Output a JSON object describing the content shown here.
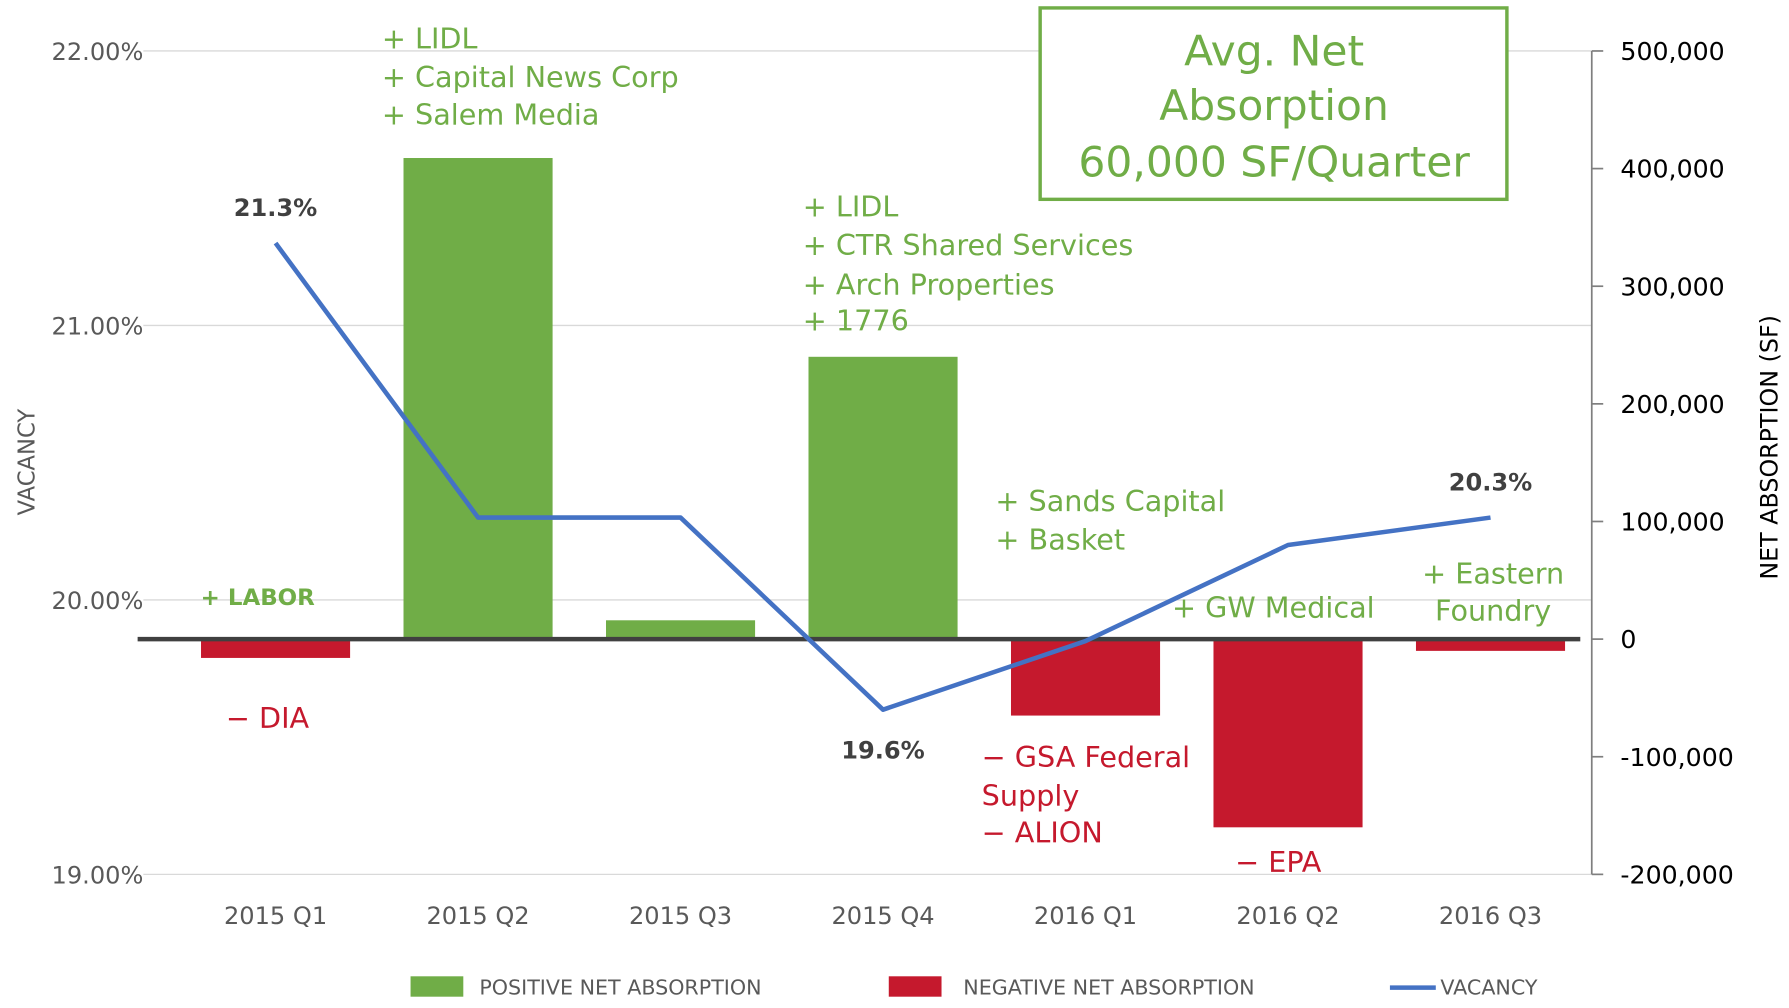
{
  "chart_data": {
    "type": "bar_line",
    "categories": [
      "2015 Q1",
      "2015 Q2",
      "2015 Q3",
      "2015 Q4",
      "2016 Q1",
      "2016 Q2",
      "2016 Q3"
    ],
    "series": [
      {
        "name": "POSITIVE NET ABSORPTION",
        "color": "#70ad47",
        "axis": "y2",
        "type": "bar",
        "values": [
          null,
          409000,
          16000,
          240000,
          null,
          null,
          null
        ]
      },
      {
        "name": "NEGATIVE NET ABSORPTION",
        "color": "#c5192d",
        "axis": "y2",
        "type": "bar",
        "values": [
          -16000,
          null,
          null,
          null,
          -65000,
          -160000,
          -10000
        ]
      },
      {
        "name": "VACANCY",
        "color": "#4472c4",
        "type": "line",
        "values": [
          21.3,
          20.3,
          20.3,
          19.6,
          19.85,
          20.2,
          20.3
        ],
        "value_labels": [
          "21.3%",
          null,
          null,
          "19.6%",
          null,
          null,
          "20.3%"
        ]
      }
    ],
    "ylabel": "VACANCY",
    "y2label": "NET ABSORPTION (SF)",
    "ylim": [
      19,
      22
    ],
    "yticks": [
      {
        "value": 19,
        "label": "19.00%"
      },
      {
        "value": 20,
        "label": "20.00%"
      },
      {
        "value": 21,
        "label": "21.00%"
      },
      {
        "value": 22,
        "label": "22.00%"
      }
    ],
    "y2lim": [
      -200000,
      500000
    ],
    "y2ticks": [
      {
        "value": -200000,
        "label": "-200,000"
      },
      {
        "value": -100000,
        "label": "-100,000"
      },
      0,
      {
        "value": 100000,
        "label": "100,000"
      },
      {
        "value": 200000,
        "label": "200,000"
      },
      {
        "value": 300000,
        "label": "300,000"
      },
      {
        "value": 400000,
        "label": "400,000"
      },
      {
        "value": 500000,
        "label": "500,000"
      }
    ],
    "grid": true,
    "legend": "bottom",
    "callout": [
      "Avg. Net",
      "Absorption",
      "60,000 SF/Quarter"
    ],
    "annotations": [
      {
        "lines": [
          "+ LABOR"
        ],
        "color": "#70ad47"
      },
      {
        "lines": [
          "− DIA"
        ],
        "color": "#c5192d"
      },
      {
        "lines": [
          "+ LIDL",
          "+ Capital News Corp",
          "+ Salem Media"
        ],
        "color": "#70ad47"
      },
      {
        "lines": [
          "+ LIDL",
          "+ CTR Shared Services",
          "+ Arch Properties",
          "+ 1776"
        ],
        "color": "#70ad47"
      },
      {
        "lines": [
          "+ Sands Capital",
          "+ Basket"
        ],
        "color": "#70ad47"
      },
      {
        "lines": [
          "− GSA Federal",
          "Supply",
          "−  ALION"
        ],
        "color": "#c5192d"
      },
      {
        "lines": [
          "+ GW Medical"
        ],
        "color": "#70ad47"
      },
      {
        "lines": [
          "− EPA"
        ],
        "color": "#c5192d"
      },
      {
        "lines": [
          "+ Eastern",
          "Foundry"
        ],
        "color": "#70ad47"
      }
    ]
  }
}
